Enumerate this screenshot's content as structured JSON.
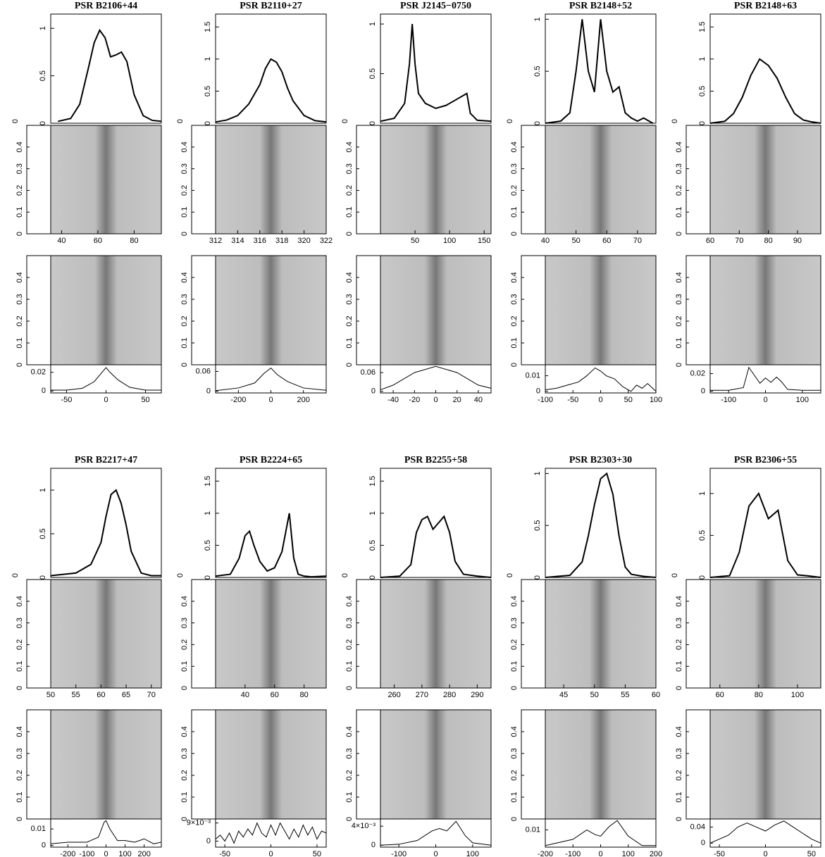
{
  "side_axis": {
    "ylim": [
      0,
      0.5
    ],
    "yticks": [
      0,
      0.1,
      0.2,
      0.3,
      0.4
    ],
    "xticks": [
      0
    ]
  },
  "chart_data": [
    {
      "type": "line",
      "title": "PSR B2106+44",
      "xlim": [
        34,
        95
      ],
      "xticks": [
        40,
        60,
        80
      ],
      "ylim": [
        0,
        1.15
      ],
      "yticks": [
        0,
        0.5,
        1
      ],
      "profile": {
        "x": [
          38,
          45,
          50,
          55,
          58,
          61,
          64,
          67,
          70,
          73,
          76,
          80,
          85,
          90,
          95
        ],
        "values": [
          0.02,
          0.05,
          0.2,
          0.6,
          0.85,
          0.98,
          0.9,
          0.7,
          0.72,
          0.75,
          0.65,
          0.3,
          0.08,
          0.03,
          0.02
        ]
      },
      "pattern": {
        "xlim": [
          -70,
          70
        ],
        "xticks": [
          -50,
          0,
          50
        ],
        "ylim": [
          -0.002,
          0.028
        ],
        "yticks": [
          0,
          0.02
        ],
        "x": [
          -70,
          -50,
          -30,
          -15,
          -5,
          0,
          5,
          15,
          30,
          50,
          70
        ],
        "values": [
          0.001,
          0.001,
          0.003,
          0.01,
          0.02,
          0.025,
          0.02,
          0.012,
          0.004,
          0.001,
          0.001
        ]
      }
    },
    {
      "type": "line",
      "title": "PSR B2110+27",
      "xlim": [
        312,
        322
      ],
      "xticks": [
        312,
        314,
        316,
        318,
        320,
        322
      ],
      "ylim": [
        0,
        1.7
      ],
      "yticks": [
        0,
        0.5,
        1,
        1.5
      ],
      "profile": {
        "x": [
          312,
          313,
          314,
          315,
          316,
          316.5,
          317,
          317.5,
          318,
          318.5,
          319,
          320,
          321,
          322
        ],
        "values": [
          0.02,
          0.05,
          0.12,
          0.3,
          0.6,
          0.85,
          1.0,
          0.95,
          0.8,
          0.55,
          0.35,
          0.12,
          0.04,
          0.02
        ]
      },
      "pattern": {
        "xlim": [
          -340,
          340
        ],
        "xticks": [
          -200,
          0,
          200
        ],
        "ylim": [
          -0.005,
          0.08
        ],
        "yticks": [
          0,
          0.06
        ],
        "x": [
          -340,
          -200,
          -100,
          -40,
          0,
          40,
          100,
          200,
          340
        ],
        "values": [
          0.002,
          0.01,
          0.025,
          0.055,
          0.07,
          0.05,
          0.03,
          0.01,
          0.003
        ]
      }
    },
    {
      "type": "line",
      "title": "PSR J2145−0750",
      "xlim": [
        0,
        160
      ],
      "xticks": [
        50,
        100,
        150
      ],
      "ylim": [
        0,
        1.1
      ],
      "yticks": [
        0,
        0.5,
        1
      ],
      "profile": {
        "x": [
          0,
          20,
          35,
          42,
          46,
          50,
          55,
          65,
          80,
          95,
          110,
          120,
          125,
          130,
          140,
          160
        ],
        "values": [
          0.02,
          0.05,
          0.2,
          0.6,
          1.0,
          0.6,
          0.3,
          0.2,
          0.15,
          0.18,
          0.24,
          0.28,
          0.3,
          0.1,
          0.03,
          0.02
        ]
      },
      "pattern": {
        "xlim": [
          -52,
          52
        ],
        "xticks": [
          -40,
          -20,
          0,
          20,
          40
        ],
        "ylim": [
          -0.005,
          0.085
        ],
        "yticks": [
          0,
          0.06
        ],
        "x": [
          -52,
          -40,
          -20,
          0,
          20,
          40,
          52
        ],
        "values": [
          0.005,
          0.02,
          0.06,
          0.08,
          0.06,
          0.02,
          0.01
        ]
      }
    },
    {
      "type": "line",
      "title": "PSR B2148+52",
      "xlim": [
        40,
        76
      ],
      "xticks": [
        40,
        50,
        60,
        70
      ],
      "ylim": [
        0,
        1.05
      ],
      "yticks": [
        0,
        0.5,
        1
      ],
      "profile": {
        "x": [
          40,
          45,
          48,
          50,
          52,
          54,
          56,
          58,
          60,
          62,
          64,
          66,
          68,
          70,
          72,
          75
        ],
        "values": [
          0,
          0.02,
          0.1,
          0.5,
          1.0,
          0.5,
          0.3,
          1.0,
          0.5,
          0.3,
          0.35,
          0.1,
          0.05,
          0.02,
          0.05,
          0
        ]
      },
      "pattern": {
        "xlim": [
          -100,
          100
        ],
        "xticks": [
          -100,
          -50,
          0,
          50,
          100
        ],
        "ylim": [
          -0.001,
          0.017
        ],
        "yticks": [
          0,
          0.01
        ],
        "x": [
          -100,
          -80,
          -60,
          -40,
          -25,
          -10,
          0,
          10,
          25,
          40,
          55,
          65,
          75,
          85,
          100
        ],
        "values": [
          0.001,
          0.002,
          0.004,
          0.006,
          0.01,
          0.015,
          0.013,
          0.01,
          0.008,
          0.003,
          0,
          0.004,
          0.002,
          0.005,
          0
        ]
      }
    },
    {
      "type": "line",
      "title": "PSR B2148+63",
      "xlim": [
        60,
        98
      ],
      "xticks": [
        60,
        70,
        80,
        90
      ],
      "ylim": [
        0,
        1.7
      ],
      "yticks": [
        0,
        0.5,
        1,
        1.5
      ],
      "profile": {
        "x": [
          60,
          65,
          68,
          71,
          74,
          77,
          80,
          83,
          86,
          89,
          92,
          95,
          98
        ],
        "values": [
          0,
          0.03,
          0.15,
          0.4,
          0.75,
          1.0,
          0.9,
          0.7,
          0.4,
          0.15,
          0.05,
          0.02,
          0
        ]
      },
      "pattern": {
        "xlim": [
          -150,
          150
        ],
        "xticks": [
          -100,
          0,
          100
        ],
        "ylim": [
          -0.002,
          0.03
        ],
        "yticks": [
          0,
          0.02
        ],
        "x": [
          -150,
          -100,
          -60,
          -45,
          -30,
          -15,
          0,
          15,
          30,
          45,
          60,
          100,
          150
        ],
        "values": [
          0.001,
          0.001,
          0.004,
          0.027,
          0.018,
          0.009,
          0.015,
          0.01,
          0.016,
          0.01,
          0.002,
          0.001,
          0.001
        ]
      }
    },
    {
      "type": "line",
      "title": "PSR B2217+47",
      "xlim": [
        50,
        72
      ],
      "xticks": [
        50,
        55,
        60,
        65,
        70
      ],
      "ylim": [
        0,
        1.25
      ],
      "yticks": [
        0,
        0.5,
        1
      ],
      "profile": {
        "x": [
          50,
          55,
          58,
          60,
          61,
          62,
          63,
          64,
          65,
          66,
          68,
          70,
          72
        ],
        "values": [
          0.02,
          0.05,
          0.15,
          0.4,
          0.7,
          0.95,
          1.0,
          0.85,
          0.6,
          0.3,
          0.05,
          0.02,
          0.02
        ]
      },
      "pattern": {
        "xlim": [
          -290,
          290
        ],
        "xticks": [
          -200,
          -100,
          0,
          100,
          200
        ],
        "ylim": [
          -0.001,
          0.016
        ],
        "yticks": [
          0,
          0.01
        ],
        "x": [
          -290,
          -200,
          -100,
          -40,
          -10,
          0,
          20,
          60,
          100,
          150,
          200,
          250,
          290
        ],
        "values": [
          0.001,
          0.002,
          0.002,
          0.005,
          0.014,
          0.015,
          0.01,
          0.003,
          0.003,
          0.002,
          0.004,
          0.001,
          0.002
        ]
      }
    },
    {
      "type": "line",
      "title": "PSR B2224+65",
      "xlim": [
        20,
        95
      ],
      "xticks": [
        40,
        60,
        80
      ],
      "ylim": [
        0,
        1.7
      ],
      "yticks": [
        0,
        0.5,
        1,
        1.5
      ],
      "profile": {
        "x": [
          20,
          30,
          36,
          40,
          43,
          46,
          50,
          55,
          60,
          65,
          70,
          73,
          76,
          80,
          85,
          95
        ],
        "values": [
          0.02,
          0.05,
          0.3,
          0.65,
          0.72,
          0.5,
          0.25,
          0.1,
          0.15,
          0.4,
          1.0,
          0.3,
          0.05,
          0.02,
          0.01,
          0.02
        ]
      },
      "pattern": {
        "xlim": [
          -60,
          60
        ],
        "xticks": [
          -50,
          0,
          50
        ],
        "ylim": [
          -0.003,
          0.011
        ],
        "yticks": [
          0,
          {
            "value": 0.009,
            "label": "9×10⁻³"
          }
        ],
        "x": [
          -60,
          -55,
          -50,
          -45,
          -40,
          -35,
          -30,
          -25,
          -20,
          -15,
          -10,
          -5,
          0,
          5,
          10,
          15,
          20,
          25,
          30,
          35,
          40,
          45,
          50,
          55,
          60
        ],
        "values": [
          0.001,
          0.003,
          0,
          0.004,
          -0.001,
          0.005,
          0.002,
          0.006,
          0.003,
          0.009,
          0.004,
          0.002,
          0.008,
          0.003,
          0.009,
          0.005,
          0.001,
          0.006,
          0.002,
          0.008,
          0.003,
          0.007,
          0.001,
          0.005,
          0.004
        ]
      }
    },
    {
      "type": "line",
      "title": "PSR B2255+58",
      "xlim": [
        255,
        295
      ],
      "xticks": [
        260,
        270,
        280,
        290
      ],
      "ylim": [
        0,
        1.7
      ],
      "yticks": [
        0,
        0.5,
        1,
        1.5
      ],
      "profile": {
        "x": [
          255,
          262,
          266,
          268,
          270,
          272,
          274,
          276,
          278,
          280,
          282,
          285,
          290,
          295
        ],
        "values": [
          0,
          0.02,
          0.2,
          0.7,
          0.9,
          0.95,
          0.75,
          0.85,
          0.95,
          0.7,
          0.25,
          0.05,
          0.02,
          0
        ]
      },
      "pattern": {
        "xlim": [
          -150,
          150
        ],
        "xticks": [
          -100,
          0,
          100
        ],
        "ylim": [
          -0.0004,
          0.0055
        ],
        "yticks": [
          0,
          {
            "value": 0.004,
            "label": "4×10⁻³"
          }
        ],
        "x": [
          -150,
          -100,
          -50,
          -10,
          10,
          30,
          55,
          80,
          100,
          150
        ],
        "values": [
          0,
          0.0002,
          0.001,
          0.003,
          0.0035,
          0.003,
          0.005,
          0.002,
          0.0005,
          0
        ]
      }
    },
    {
      "type": "line",
      "title": "PSR B2303+30",
      "xlim": [
        42,
        60
      ],
      "xticks": [
        45,
        50,
        55,
        60
      ],
      "ylim": [
        0,
        1.05
      ],
      "yticks": [
        0,
        0.5,
        1
      ],
      "profile": {
        "x": [
          42,
          46,
          48,
          49,
          50,
          51,
          52,
          53,
          54,
          55,
          56,
          58,
          60
        ],
        "values": [
          0,
          0.02,
          0.15,
          0.4,
          0.7,
          0.95,
          1.0,
          0.8,
          0.4,
          0.1,
          0.03,
          0.01,
          0
        ]
      },
      "pattern": {
        "xlim": [
          -200,
          200
        ],
        "xticks": [
          -200,
          -100,
          0,
          100,
          200
        ],
        "ylim": [
          -0.001,
          0.017
        ],
        "yticks": [
          0.01
        ],
        "x": [
          -200,
          -150,
          -100,
          -50,
          -20,
          0,
          30,
          60,
          100,
          150,
          200
        ],
        "values": [
          0,
          0.002,
          0.004,
          0.01,
          0.007,
          0.006,
          0.012,
          0.016,
          0.006,
          0,
          0
        ]
      }
    },
    {
      "type": "line",
      "title": "PSR B2306+55",
      "xlim": [
        55,
        112
      ],
      "xticks": [
        60,
        80,
        100
      ],
      "ylim": [
        0,
        1.3
      ],
      "yticks": [
        0,
        0.5,
        1
      ],
      "profile": {
        "x": [
          55,
          65,
          70,
          75,
          80,
          85,
          90,
          95,
          100,
          105,
          112
        ],
        "values": [
          0,
          0.02,
          0.3,
          0.85,
          1.0,
          0.7,
          0.8,
          0.2,
          0.03,
          0.02,
          0
        ]
      },
      "pattern": {
        "xlim": [
          -60,
          60
        ],
        "xticks": [
          -50,
          0,
          50
        ],
        "ylim": [
          -0.01,
          0.06
        ],
        "yticks": [
          0,
          0.04
        ],
        "x": [
          -60,
          -50,
          -40,
          -30,
          -20,
          -10,
          0,
          10,
          20,
          30,
          40,
          50,
          60
        ],
        "values": [
          0,
          0.01,
          0.02,
          0.04,
          0.05,
          0.04,
          0.03,
          0.045,
          0.055,
          0.04,
          0.025,
          0.01,
          0
        ]
      }
    }
  ]
}
